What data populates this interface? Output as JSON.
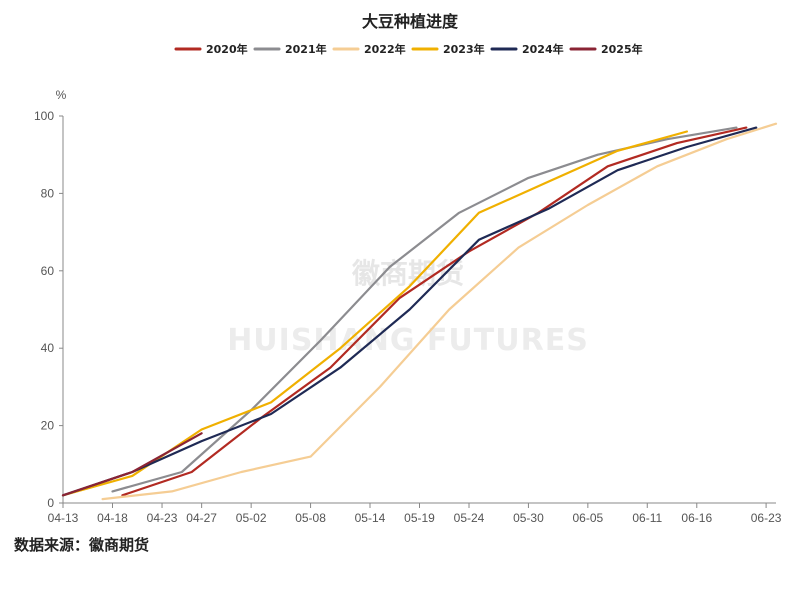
{
  "chart_data": {
    "type": "line",
    "title": "大豆种植进度",
    "ylabel": "%",
    "xlabel": "",
    "ylim": [
      0,
      100
    ],
    "yticks": [
      0,
      20,
      40,
      60,
      80,
      100
    ],
    "x_ticks": [
      "04-13",
      "04-18",
      "04-23",
      "04-27",
      "05-02",
      "05-08",
      "05-14",
      "05-19",
      "05-24",
      "05-30",
      "06-05",
      "06-11",
      "06-16",
      "06-23"
    ],
    "legend_position": "top",
    "grid": false,
    "watermark": {
      "cn": "徽商期货",
      "en": "HUISHANG FUTURES"
    },
    "series": [
      {
        "name": "2020年",
        "color": "#b22a22",
        "points": [
          [
            "04-19",
            2
          ],
          [
            "04-26",
            8
          ],
          [
            "05-03",
            22
          ],
          [
            "05-10",
            35
          ],
          [
            "05-17",
            53
          ],
          [
            "05-24",
            65
          ],
          [
            "05-31",
            75
          ],
          [
            "06-07",
            87
          ],
          [
            "06-14",
            93
          ],
          [
            "06-21",
            97
          ]
        ]
      },
      {
        "name": "2021年",
        "color": "#8c8c90",
        "points": [
          [
            "04-18",
            3
          ],
          [
            "04-25",
            8
          ],
          [
            "05-02",
            24
          ],
          [
            "05-09",
            42
          ],
          [
            "05-16",
            61
          ],
          [
            "05-23",
            75
          ],
          [
            "05-30",
            84
          ],
          [
            "06-06",
            90
          ],
          [
            "06-13",
            94
          ],
          [
            "06-20",
            97
          ]
        ]
      },
      {
        "name": "2022年",
        "color": "#f5cd94",
        "points": [
          [
            "04-17",
            1
          ],
          [
            "04-24",
            3
          ],
          [
            "05-01",
            8
          ],
          [
            "05-08",
            12
          ],
          [
            "05-15",
            30
          ],
          [
            "05-22",
            50
          ],
          [
            "05-29",
            66
          ],
          [
            "06-05",
            77
          ],
          [
            "06-12",
            87
          ],
          [
            "06-19",
            94
          ],
          [
            "06-24",
            98
          ]
        ]
      },
      {
        "name": "2023年",
        "color": "#f0b000",
        "points": [
          [
            "04-13",
            2
          ],
          [
            "04-20",
            7
          ],
          [
            "04-27",
            19
          ],
          [
            "05-04",
            26
          ],
          [
            "05-11",
            40
          ],
          [
            "05-18",
            56
          ],
          [
            "05-25",
            75
          ],
          [
            "06-01",
            83
          ],
          [
            "06-08",
            91
          ],
          [
            "06-15",
            96
          ]
        ]
      },
      {
        "name": "2024年",
        "color": "#1f2a55",
        "points": [
          [
            "04-13",
            2
          ],
          [
            "04-20",
            8
          ],
          [
            "04-27",
            16
          ],
          [
            "05-04",
            23
          ],
          [
            "05-11",
            35
          ],
          [
            "05-18",
            50
          ],
          [
            "05-25",
            68
          ],
          [
            "06-01",
            76
          ],
          [
            "06-08",
            86
          ],
          [
            "06-15",
            92
          ],
          [
            "06-22",
            97
          ]
        ]
      },
      {
        "name": "2025年",
        "color": "#8a2434",
        "points": [
          [
            "04-13",
            2
          ],
          [
            "04-20",
            8
          ],
          [
            "04-27",
            18
          ]
        ]
      }
    ]
  },
  "footer": {
    "source": "数据来源：徽商期货"
  }
}
